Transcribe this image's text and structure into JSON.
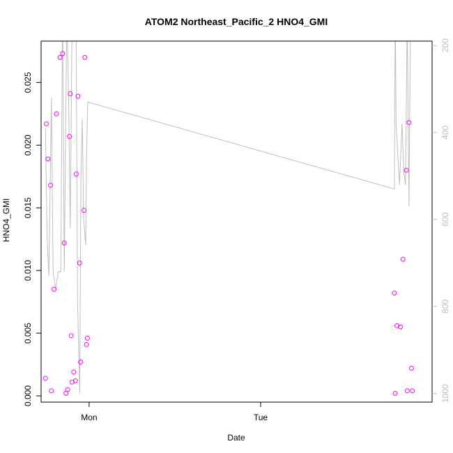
{
  "chart_data": {
    "type": "scatter",
    "title": "ATOM2 Northeast_Pacific_2 HNO4_GMI",
    "xlabel": "Date",
    "ylabel": "HNO4_GMI",
    "x_axis": {
      "unit": "days",
      "range": [
        -0.28,
        2.0
      ],
      "ticks": [
        {
          "value": 0.0,
          "label": "Mon"
        },
        {
          "value": 1.0,
          "label": "Tue"
        }
      ]
    },
    "y_axis": {
      "range": [
        -0.0005,
        0.0283
      ],
      "ticks": [
        0.0,
        0.005,
        0.01,
        0.015,
        0.02,
        0.025
      ],
      "tick_labels": [
        "0.000",
        "0.005",
        "0.010",
        "0.015",
        "0.020",
        "0.025"
      ]
    },
    "y2_axis": {
      "range": [
        1020,
        190
      ],
      "reversed": true,
      "color": "#bebebe",
      "ticks": [
        200,
        400,
        600,
        800,
        1000
      ],
      "tick_labels": [
        "200",
        "400",
        "600",
        "800",
        "1000"
      ]
    },
    "series": [
      {
        "kind": "points",
        "color": "#ff00ff",
        "marker": "open-circle",
        "points": [
          {
            "x": -0.255,
            "y": 0.0014
          },
          {
            "x": -0.25,
            "y": 0.0217
          },
          {
            "x": -0.24,
            "y": 0.0189
          },
          {
            "x": -0.225,
            "y": 0.0168
          },
          {
            "x": -0.22,
            "y": 0.0004
          },
          {
            "x": -0.205,
            "y": 0.0085
          },
          {
            "x": -0.19,
            "y": 0.0225
          },
          {
            "x": -0.17,
            "y": 0.027
          },
          {
            "x": -0.155,
            "y": 0.0273
          },
          {
            "x": -0.145,
            "y": 0.0122
          },
          {
            "x": -0.135,
            "y": 0.0002
          },
          {
            "x": -0.125,
            "y": 0.0005
          },
          {
            "x": -0.115,
            "y": 0.0207
          },
          {
            "x": -0.11,
            "y": 0.0241
          },
          {
            "x": -0.105,
            "y": 0.0048
          },
          {
            "x": -0.1,
            "y": 0.0011
          },
          {
            "x": -0.09,
            "y": 0.0019
          },
          {
            "x": -0.08,
            "y": 0.0012
          },
          {
            "x": -0.075,
            "y": 0.0177
          },
          {
            "x": -0.065,
            "y": 0.0239
          },
          {
            "x": -0.055,
            "y": 0.0106
          },
          {
            "x": -0.05,
            "y": 0.0027
          },
          {
            "x": -0.03,
            "y": 0.0148
          },
          {
            "x": -0.025,
            "y": 0.027
          },
          {
            "x": -0.015,
            "y": 0.0041
          },
          {
            "x": -0.01,
            "y": 0.0046
          },
          {
            "x": 1.78,
            "y": 0.0082
          },
          {
            "x": 1.785,
            "y": 0.0002
          },
          {
            "x": 1.795,
            "y": 0.0056
          },
          {
            "x": 1.815,
            "y": 0.0055
          },
          {
            "x": 1.83,
            "y": 0.0109
          },
          {
            "x": 1.85,
            "y": 0.018
          },
          {
            "x": 1.855,
            "y": 0.0004
          },
          {
            "x": 1.865,
            "y": 0.0218
          },
          {
            "x": 1.88,
            "y": 0.0022
          },
          {
            "x": 1.885,
            "y": 0.0004
          }
        ]
      },
      {
        "kind": "line",
        "axis": "y2",
        "color": "#bebebe",
        "points": [
          {
            "x": -0.255,
            "y": 390
          },
          {
            "x": -0.245,
            "y": 640
          },
          {
            "x": -0.235,
            "y": 730
          },
          {
            "x": -0.22,
            "y": 320
          },
          {
            "x": -0.21,
            "y": 720
          },
          {
            "x": -0.195,
            "y": 760
          },
          {
            "x": -0.18,
            "y": 720
          },
          {
            "x": -0.165,
            "y": 720
          },
          {
            "x": -0.155,
            "y": 100
          },
          {
            "x": -0.145,
            "y": 720
          },
          {
            "x": -0.13,
            "y": 120
          },
          {
            "x": -0.12,
            "y": 320
          },
          {
            "x": -0.11,
            "y": 620
          },
          {
            "x": -0.1,
            "y": 160
          },
          {
            "x": -0.085,
            "y": 100
          },
          {
            "x": -0.075,
            "y": 200
          },
          {
            "x": -0.068,
            "y": 780
          },
          {
            "x": -0.055,
            "y": 1000
          },
          {
            "x": -0.048,
            "y": 500
          },
          {
            "x": -0.04,
            "y": 370
          },
          {
            "x": -0.032,
            "y": 600
          },
          {
            "x": -0.02,
            "y": 660
          },
          {
            "x": -0.015,
            "y": 450
          },
          {
            "x": -0.008,
            "y": 330
          },
          {
            "x": 1.78,
            "y": 530
          },
          {
            "x": 1.785,
            "y": 100
          },
          {
            "x": 1.79,
            "y": 380
          },
          {
            "x": 1.81,
            "y": 520
          },
          {
            "x": 1.825,
            "y": 380
          },
          {
            "x": 1.835,
            "y": 490
          },
          {
            "x": 1.845,
            "y": 520
          },
          {
            "x": 1.855,
            "y": 130
          },
          {
            "x": 1.865,
            "y": 570
          },
          {
            "x": 1.875,
            "y": 100
          },
          {
            "x": 1.89,
            "y": 100
          }
        ]
      }
    ]
  }
}
